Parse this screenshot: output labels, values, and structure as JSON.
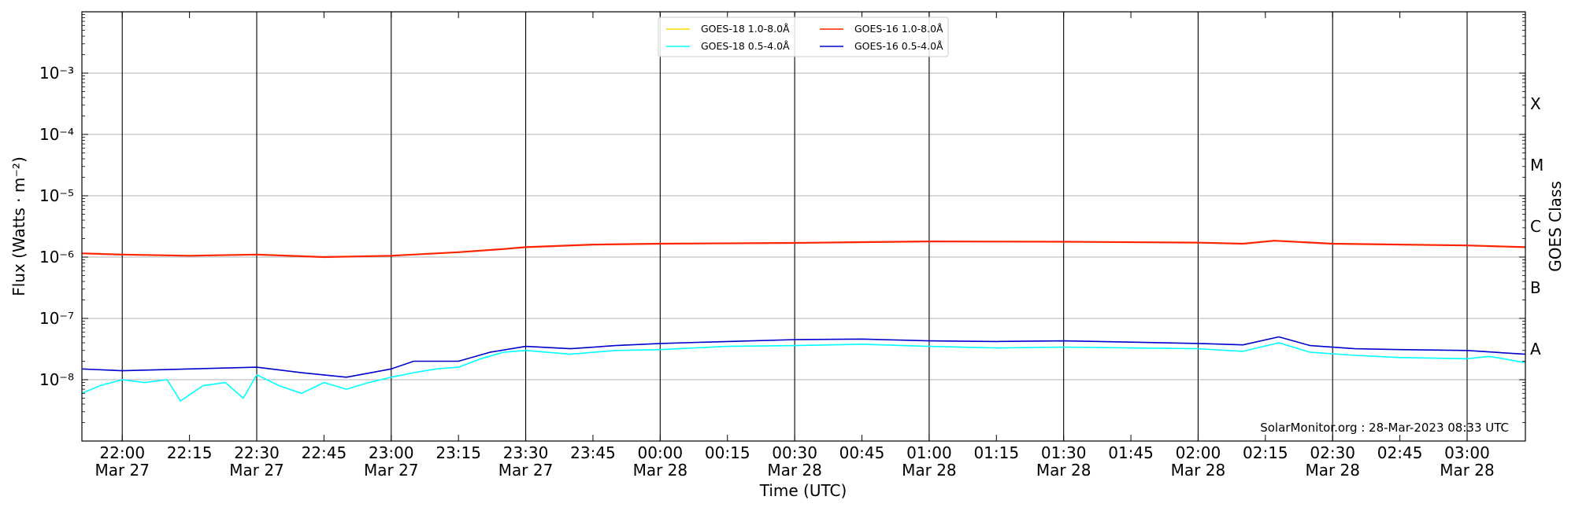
{
  "chart_data": {
    "type": "line",
    "xlabel": "Time (UTC)",
    "ylabel": "Flux (Watts · m⁻²)",
    "right_axis_label": "GOES Class",
    "credit": "SolarMonitor.org : 28-Mar-2023 08:33 UTC",
    "x_range": [
      "2023-03-27T21:51",
      "2023-03-28T03:13"
    ],
    "ylim": [
      1e-09,
      0.01
    ],
    "y_scale": "log",
    "grid": "horizontal",
    "legend_position": "top-center",
    "y_ticks": [
      {
        "value": 1e-08,
        "label": "10⁻⁸"
      },
      {
        "value": 1e-07,
        "label": "10⁻⁷"
      },
      {
        "value": 1e-06,
        "label": "10⁻⁶"
      },
      {
        "value": 1e-05,
        "label": "10⁻⁵"
      },
      {
        "value": 0.0001,
        "label": "10⁻⁴"
      },
      {
        "value": 0.001,
        "label": "10⁻³"
      }
    ],
    "x_ticks": [
      {
        "time": "2023-03-27T22:00",
        "label": "22:00",
        "date": "Mar 27"
      },
      {
        "time": "2023-03-27T22:15",
        "label": "22:15",
        "date": ""
      },
      {
        "time": "2023-03-27T22:30",
        "label": "22:30",
        "date": "Mar 27"
      },
      {
        "time": "2023-03-27T22:45",
        "label": "22:45",
        "date": ""
      },
      {
        "time": "2023-03-27T23:00",
        "label": "23:00",
        "date": "Mar 27"
      },
      {
        "time": "2023-03-27T23:15",
        "label": "23:15",
        "date": ""
      },
      {
        "time": "2023-03-27T23:30",
        "label": "23:30",
        "date": "Mar 27"
      },
      {
        "time": "2023-03-27T23:45",
        "label": "23:45",
        "date": ""
      },
      {
        "time": "2023-03-28T00:00",
        "label": "00:00",
        "date": "Mar 28"
      },
      {
        "time": "2023-03-28T00:15",
        "label": "00:15",
        "date": ""
      },
      {
        "time": "2023-03-28T00:30",
        "label": "00:30",
        "date": "Mar 28"
      },
      {
        "time": "2023-03-28T00:45",
        "label": "00:45",
        "date": ""
      },
      {
        "time": "2023-03-28T01:00",
        "label": "01:00",
        "date": "Mar 28"
      },
      {
        "time": "2023-03-28T01:15",
        "label": "01:15",
        "date": ""
      },
      {
        "time": "2023-03-28T01:30",
        "label": "01:30",
        "date": "Mar 28"
      },
      {
        "time": "2023-03-28T01:45",
        "label": "01:45",
        "date": ""
      },
      {
        "time": "2023-03-28T02:00",
        "label": "02:00",
        "date": "Mar 28"
      },
      {
        "time": "2023-03-28T02:15",
        "label": "02:15",
        "date": ""
      },
      {
        "time": "2023-03-28T02:30",
        "label": "02:30",
        "date": "Mar 28"
      },
      {
        "time": "2023-03-28T02:45",
        "label": "02:45",
        "date": ""
      },
      {
        "time": "2023-03-28T03:00",
        "label": "03:00",
        "date": "Mar 28"
      }
    ],
    "vertical_lines": [
      "2023-03-27T22:00",
      "2023-03-27T22:30",
      "2023-03-27T23:00",
      "2023-03-27T23:30",
      "2023-03-28T00:00",
      "2023-03-28T00:30",
      "2023-03-28T01:00",
      "2023-03-28T01:30",
      "2023-03-28T02:00",
      "2023-03-28T02:30",
      "2023-03-28T03:00"
    ],
    "goes_classes": [
      {
        "label": "A",
        "value": 3.16e-08
      },
      {
        "label": "B",
        "value": 3.16e-07
      },
      {
        "label": "C",
        "value": 3.16e-06
      },
      {
        "label": "M",
        "value": 3.16e-05
      },
      {
        "label": "X",
        "value": 0.000316
      }
    ],
    "series": [
      {
        "name": "GOES-18 1.0-8.0Å",
        "color": "#ffd700",
        "style": "line",
        "points": []
      },
      {
        "name": "GOES-18 0.5-4.0Å",
        "color": "#00ffff",
        "style": "line",
        "points": [
          [
            "2023-03-27T21:51",
            6e-09
          ],
          [
            "2023-03-27T21:55",
            8e-09
          ],
          [
            "2023-03-27T22:00",
            1e-08
          ],
          [
            "2023-03-27T22:05",
            9e-09
          ],
          [
            "2023-03-27T22:10",
            1e-08
          ],
          [
            "2023-03-27T22:13",
            4.5e-09
          ],
          [
            "2023-03-27T22:18",
            8e-09
          ],
          [
            "2023-03-27T22:23",
            9e-09
          ],
          [
            "2023-03-27T22:27",
            5e-09
          ],
          [
            "2023-03-27T22:30",
            1.2e-08
          ],
          [
            "2023-03-27T22:35",
            8e-09
          ],
          [
            "2023-03-27T22:40",
            6e-09
          ],
          [
            "2023-03-27T22:45",
            9e-09
          ],
          [
            "2023-03-27T22:50",
            7e-09
          ],
          [
            "2023-03-27T22:55",
            9e-09
          ],
          [
            "2023-03-27T23:00",
            1.1e-08
          ],
          [
            "2023-03-27T23:05",
            1.3e-08
          ],
          [
            "2023-03-27T23:10",
            1.5e-08
          ],
          [
            "2023-03-27T23:15",
            1.6e-08
          ],
          [
            "2023-03-27T23:20",
            2.2e-08
          ],
          [
            "2023-03-27T23:25",
            2.8e-08
          ],
          [
            "2023-03-27T23:30",
            3e-08
          ],
          [
            "2023-03-27T23:40",
            2.6e-08
          ],
          [
            "2023-03-27T23:50",
            3e-08
          ],
          [
            "2023-03-28T00:00",
            3.1e-08
          ],
          [
            "2023-03-28T00:15",
            3.5e-08
          ],
          [
            "2023-03-28T00:30",
            3.6e-08
          ],
          [
            "2023-03-28T00:45",
            3.8e-08
          ],
          [
            "2023-03-28T01:00",
            3.5e-08
          ],
          [
            "2023-03-28T01:15",
            3.3e-08
          ],
          [
            "2023-03-28T01:30",
            3.4e-08
          ],
          [
            "2023-03-28T01:45",
            3.3e-08
          ],
          [
            "2023-03-28T02:00",
            3.2e-08
          ],
          [
            "2023-03-28T02:10",
            2.9e-08
          ],
          [
            "2023-03-28T02:18",
            4e-08
          ],
          [
            "2023-03-28T02:25",
            2.8e-08
          ],
          [
            "2023-03-28T02:35",
            2.5e-08
          ],
          [
            "2023-03-28T02:45",
            2.3e-08
          ],
          [
            "2023-03-28T03:00",
            2.2e-08
          ],
          [
            "2023-03-28T03:05",
            2.4e-08
          ],
          [
            "2023-03-28T03:13",
            1.9e-08
          ]
        ]
      },
      {
        "name": "GOES-16 1.0-8.0Å",
        "color": "#ff2400",
        "style": "line",
        "points": [
          [
            "2023-03-27T21:51",
            1.15e-06
          ],
          [
            "2023-03-27T22:00",
            1.1e-06
          ],
          [
            "2023-03-27T22:15",
            1.05e-06
          ],
          [
            "2023-03-27T22:30",
            1.1e-06
          ],
          [
            "2023-03-27T22:45",
            1e-06
          ],
          [
            "2023-03-27T23:00",
            1.05e-06
          ],
          [
            "2023-03-27T23:15",
            1.2e-06
          ],
          [
            "2023-03-27T23:25",
            1.35e-06
          ],
          [
            "2023-03-27T23:30",
            1.45e-06
          ],
          [
            "2023-03-27T23:45",
            1.6e-06
          ],
          [
            "2023-03-28T00:00",
            1.65e-06
          ],
          [
            "2023-03-28T00:30",
            1.7e-06
          ],
          [
            "2023-03-28T00:45",
            1.75e-06
          ],
          [
            "2023-03-28T01:00",
            1.8e-06
          ],
          [
            "2023-03-28T01:30",
            1.78e-06
          ],
          [
            "2023-03-28T02:00",
            1.72e-06
          ],
          [
            "2023-03-28T02:10",
            1.65e-06
          ],
          [
            "2023-03-28T02:17",
            1.85e-06
          ],
          [
            "2023-03-28T02:30",
            1.65e-06
          ],
          [
            "2023-03-28T03:00",
            1.55e-06
          ],
          [
            "2023-03-28T03:13",
            1.45e-06
          ]
        ]
      },
      {
        "name": "GOES-16 0.5-4.0Å",
        "color": "#0000cd",
        "style": "line",
        "points": [
          [
            "2023-03-27T21:51",
            1.5e-08
          ],
          [
            "2023-03-27T22:00",
            1.4e-08
          ],
          [
            "2023-03-27T22:15",
            1.5e-08
          ],
          [
            "2023-03-27T22:30",
            1.6e-08
          ],
          [
            "2023-03-27T22:40",
            1.3e-08
          ],
          [
            "2023-03-27T22:50",
            1.1e-08
          ],
          [
            "2023-03-27T23:00",
            1.5e-08
          ],
          [
            "2023-03-27T23:05",
            2e-08
          ],
          [
            "2023-03-27T23:15",
            2e-08
          ],
          [
            "2023-03-27T23:22",
            2.8e-08
          ],
          [
            "2023-03-27T23:30",
            3.5e-08
          ],
          [
            "2023-03-27T23:40",
            3.2e-08
          ],
          [
            "2023-03-27T23:50",
            3.6e-08
          ],
          [
            "2023-03-28T00:00",
            3.9e-08
          ],
          [
            "2023-03-28T00:15",
            4.2e-08
          ],
          [
            "2023-03-28T00:30",
            4.5e-08
          ],
          [
            "2023-03-28T00:45",
            4.6e-08
          ],
          [
            "2023-03-28T01:00",
            4.3e-08
          ],
          [
            "2023-03-28T01:15",
            4.2e-08
          ],
          [
            "2023-03-28T01:30",
            4.3e-08
          ],
          [
            "2023-03-28T01:45",
            4.1e-08
          ],
          [
            "2023-03-28T02:00",
            3.9e-08
          ],
          [
            "2023-03-28T02:10",
            3.7e-08
          ],
          [
            "2023-03-28T02:18",
            5e-08
          ],
          [
            "2023-03-28T02:25",
            3.6e-08
          ],
          [
            "2023-03-28T02:35",
            3.2e-08
          ],
          [
            "2023-03-28T02:45",
            3.1e-08
          ],
          [
            "2023-03-28T03:00",
            3e-08
          ],
          [
            "2023-03-28T03:13",
            2.6e-08
          ]
        ]
      }
    ]
  }
}
